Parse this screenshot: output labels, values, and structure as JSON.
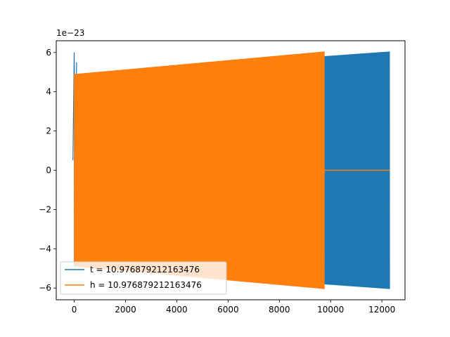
{
  "chart_data": {
    "type": "line",
    "title": "",
    "xlabel": "",
    "ylabel": "",
    "y_offset_label": "1e−23",
    "xlim": [
      -700,
      12900
    ],
    "ylim": [
      -6.6e-23,
      6.6e-23
    ],
    "x_ticks": [
      0,
      2000,
      4000,
      6000,
      8000,
      10000,
      12000
    ],
    "x_tick_labels": [
      "0",
      "2000",
      "4000",
      "6000",
      "8000",
      "10000",
      "12000"
    ],
    "y_ticks": [
      -6e-23,
      -4e-23,
      -2e-23,
      0,
      2e-23,
      4e-23,
      6e-23
    ],
    "y_tick_labels": [
      "−6",
      "−4",
      "−2",
      "0",
      "2",
      "4",
      "6"
    ],
    "grid": false,
    "legend_position": "lower-left",
    "series": [
      {
        "name": "t = 10.976879212163476",
        "color": "#1f77b4",
        "x_start": 0,
        "x_end": 12300,
        "amplitude_start": 4.9e-23,
        "amplitude_end": 6.05e-23,
        "initial_spike": 6e-23
      },
      {
        "name": "h = 10.976879212163476",
        "color": "#ff7f0e",
        "x_start": 0,
        "x_end": 9750,
        "amplitude_start": 4.9e-23,
        "amplitude_end": 6.05e-23,
        "flat_after_end_x": 12300,
        "flat_value": 0
      }
    ]
  }
}
